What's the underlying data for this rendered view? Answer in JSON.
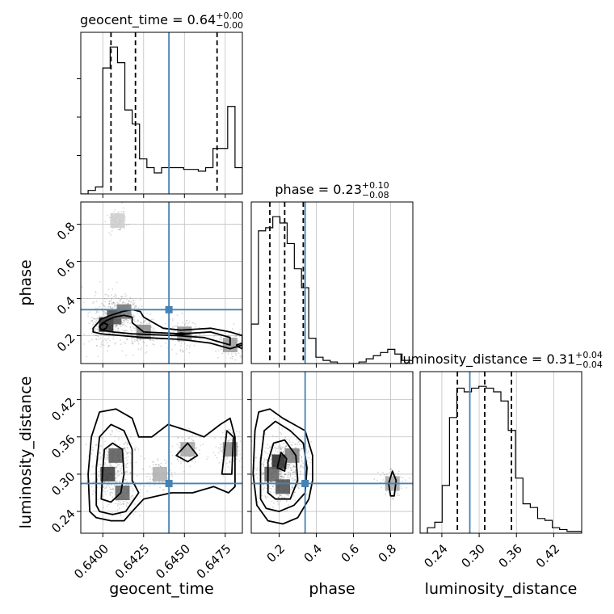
{
  "chart_data": {
    "type": "corner",
    "parameters": [
      "geocent_time",
      "phase",
      "luminosity_distance"
    ],
    "truths": {
      "geocent_time": 0.64405,
      "phase": 0.34,
      "luminosity_distance": 0.285
    },
    "ranges": {
      "geocent_time": [
        0.63865,
        0.64855
      ],
      "phase": [
        0.05,
        0.92
      ],
      "luminosity_distance": [
        0.205,
        0.465
      ]
    },
    "titles": [
      {
        "param": "geocent_time",
        "text": "geocent_time = 0.64",
        "sup": "+0.00",
        "sub": "−0.00"
      },
      {
        "param": "phase",
        "text": "phase = 0.23",
        "sup": "+0.10",
        "sub": "−0.08"
      },
      {
        "param": "luminosity_distance",
        "text": "luminosity_distance = 0.31",
        "sup": "+0.04",
        "sub": "−0.04"
      }
    ],
    "quantiles": {
      "geocent_time": [
        0.6405,
        0.642,
        0.647
      ],
      "phase": [
        0.15,
        0.23,
        0.33
      ],
      "luminosity_distance": [
        0.265,
        0.309,
        0.352
      ]
    },
    "ticks": {
      "geocent_time": [
        {
          "value": 0.64,
          "label": "0.6400"
        },
        {
          "value": 0.6425,
          "label": "0.6425"
        },
        {
          "value": 0.645,
          "label": "0.6450"
        },
        {
          "value": 0.6475,
          "label": "0.6475"
        }
      ],
      "phase": [
        {
          "value": 0.2,
          "label": "0.2"
        },
        {
          "value": 0.4,
          "label": "0.4"
        },
        {
          "value": 0.6,
          "label": "0.6"
        },
        {
          "value": 0.8,
          "label": "0.8"
        }
      ],
      "luminosity_distance": [
        {
          "value": 0.24,
          "label": "0.24"
        },
        {
          "value": 0.3,
          "label": "0.30"
        },
        {
          "value": 0.36,
          "label": "0.36"
        },
        {
          "value": 0.42,
          "label": "0.42"
        }
      ]
    },
    "histograms": {
      "geocent_time": {
        "edges": [
          0.63865,
          0.6391,
          0.63955,
          0.64,
          0.64045,
          0.6409,
          0.64135,
          0.6418,
          0.64225,
          0.6427,
          0.64315,
          0.6436,
          0.64405,
          0.6445,
          0.64495,
          0.6454,
          0.64585,
          0.6463,
          0.64675,
          0.6472,
          0.64765,
          0.6481,
          0.64855
        ],
        "counts": [
          0,
          2,
          4,
          72,
          84,
          75,
          48,
          40,
          20,
          15,
          12,
          15,
          15,
          15,
          14,
          14,
          13,
          15,
          26,
          26,
          50,
          15
        ]
      },
      "phase": {
        "edges": [
          0.05,
          0.0887,
          0.1273,
          0.166,
          0.2047,
          0.2433,
          0.282,
          0.3207,
          0.3593,
          0.398,
          0.4367,
          0.4753,
          0.514,
          0.5527,
          0.5913,
          0.63,
          0.6687,
          0.7073,
          0.746,
          0.7847,
          0.8233,
          0.862,
          0.92
        ],
        "counts": [
          25,
          84,
          86,
          93,
          89,
          76,
          60,
          48,
          16,
          4,
          2,
          1,
          0,
          0,
          0,
          1,
          3,
          5,
          7,
          9,
          6,
          2
        ]
      },
      "luminosity_distance": {
        "edges": [
          0.205,
          0.2168,
          0.2286,
          0.2405,
          0.2523,
          0.2641,
          0.2759,
          0.2877,
          0.2995,
          0.3114,
          0.3232,
          0.335,
          0.3468,
          0.3586,
          0.3705,
          0.3823,
          0.3941,
          0.4059,
          0.4177,
          0.4295,
          0.4414,
          0.4532,
          0.465
        ],
        "counts": [
          0,
          3,
          6,
          26,
          63,
          79,
          77,
          79,
          80,
          79,
          77,
          72,
          56,
          30,
          16,
          14,
          8,
          7,
          3,
          2,
          1,
          1
        ]
      }
    },
    "pairs": {
      "phase_vs_geocent_time": {
        "contours": [
          [
            [
              0.6394,
              0.24
            ],
            [
              0.6399,
              0.29
            ],
            [
              0.6405,
              0.31
            ],
            [
              0.6412,
              0.33
            ],
            [
              0.6418,
              0.34
            ],
            [
              0.6423,
              0.33
            ],
            [
              0.6425,
              0.3
            ],
            [
              0.6437,
              0.24
            ],
            [
              0.6448,
              0.23
            ],
            [
              0.6466,
              0.24
            ],
            [
              0.6478,
              0.22
            ],
            [
              0.64855,
              0.2
            ],
            [
              0.64855,
              0.15
            ],
            [
              0.6478,
              0.13
            ],
            [
              0.6466,
              0.16
            ],
            [
              0.6448,
              0.18
            ],
            [
              0.6425,
              0.19
            ],
            [
              0.6412,
              0.2
            ],
            [
              0.6399,
              0.21
            ],
            [
              0.6394,
              0.22
            ]
          ],
          [
            [
              0.6398,
              0.25
            ],
            [
              0.6402,
              0.28
            ],
            [
              0.6407,
              0.3
            ],
            [
              0.6413,
              0.31
            ],
            [
              0.6418,
              0.3
            ],
            [
              0.6418,
              0.27
            ],
            [
              0.6425,
              0.22
            ],
            [
              0.6448,
              0.21
            ],
            [
              0.6466,
              0.22
            ],
            [
              0.6478,
              0.19
            ],
            [
              0.6478,
              0.15
            ],
            [
              0.6462,
              0.19
            ],
            [
              0.6446,
              0.2
            ],
            [
              0.6418,
              0.21
            ],
            [
              0.6406,
              0.22
            ],
            [
              0.6399,
              0.23
            ]
          ],
          [
            [
              0.6398,
              0.25
            ],
            [
              0.64,
              0.27
            ],
            [
              0.6403,
              0.26
            ],
            [
              0.6402,
              0.24
            ],
            [
              0.6399,
              0.23
            ]
          ],
          [
            [
              0.6444,
              0.21
            ],
            [
              0.6448,
              0.215
            ],
            [
              0.6453,
              0.21
            ],
            [
              0.6448,
              0.205
            ]
          ],
          [
            [
              0.6482,
              0.15
            ],
            [
              0.64855,
              0.16
            ],
            [
              0.64855,
              0.13
            ],
            [
              0.6483,
              0.14
            ]
          ]
        ],
        "density_regions": [
          [
            0.6402,
            0.26,
            1.0
          ],
          [
            0.6407,
            0.3,
            0.8
          ],
          [
            0.6413,
            0.33,
            0.6
          ],
          [
            0.6425,
            0.22,
            0.5
          ],
          [
            0.645,
            0.21,
            0.45
          ],
          [
            0.6478,
            0.15,
            0.4
          ],
          [
            0.6409,
            0.82,
            0.15
          ]
        ]
      },
      "luminosity_distance_vs_geocent_time": {
        "contours": [
          [
            [
              0.6392,
              0.24
            ],
            [
              0.6391,
              0.3
            ],
            [
              0.6393,
              0.36
            ],
            [
              0.6398,
              0.4
            ],
            [
              0.6408,
              0.405
            ],
            [
              0.6418,
              0.39
            ],
            [
              0.6422,
              0.36
            ],
            [
              0.643,
              0.36
            ],
            [
              0.644,
              0.38
            ],
            [
              0.6452,
              0.37
            ],
            [
              0.6462,
              0.36
            ],
            [
              0.6472,
              0.38
            ],
            [
              0.6478,
              0.39
            ],
            [
              0.6481,
              0.36
            ],
            [
              0.6481,
              0.28
            ],
            [
              0.6477,
              0.27
            ],
            [
              0.6468,
              0.28
            ],
            [
              0.6455,
              0.27
            ],
            [
              0.6442,
              0.27
            ],
            [
              0.6425,
              0.26
            ],
            [
              0.6418,
              0.24
            ],
            [
              0.6413,
              0.225
            ],
            [
              0.6405,
              0.225
            ],
            [
              0.6396,
              0.23
            ]
          ],
          [
            [
              0.6396,
              0.25
            ],
            [
              0.6396,
              0.31
            ],
            [
              0.6398,
              0.36
            ],
            [
              0.6405,
              0.38
            ],
            [
              0.6413,
              0.37
            ],
            [
              0.6418,
              0.34
            ],
            [
              0.6418,
              0.29
            ],
            [
              0.6422,
              0.27
            ],
            [
              0.6414,
              0.24
            ],
            [
              0.6406,
              0.235
            ],
            [
              0.6398,
              0.24
            ]
          ],
          [
            [
              0.6399,
              0.26
            ],
            [
              0.64,
              0.31
            ],
            [
              0.6401,
              0.34
            ],
            [
              0.6406,
              0.35
            ],
            [
              0.6412,
              0.34
            ],
            [
              0.6413,
              0.3
            ],
            [
              0.6411,
              0.27
            ],
            [
              0.6405,
              0.255
            ]
          ],
          [
            [
              0.6445,
              0.33
            ],
            [
              0.6452,
              0.35
            ],
            [
              0.6458,
              0.33
            ],
            [
              0.6452,
              0.32
            ]
          ],
          [
            [
              0.6473,
              0.3
            ],
            [
              0.6476,
              0.37
            ],
            [
              0.648,
              0.36
            ],
            [
              0.6479,
              0.3
            ]
          ]
        ],
        "density_regions": [
          [
            0.6403,
            0.3,
            0.9
          ],
          [
            0.6408,
            0.33,
            0.75
          ],
          [
            0.6412,
            0.27,
            0.7
          ],
          [
            0.6478,
            0.34,
            0.5
          ],
          [
            0.6452,
            0.34,
            0.35
          ],
          [
            0.6435,
            0.3,
            0.3
          ]
        ]
      },
      "luminosity_distance_vs_phase": {
        "contours": [
          [
            [
              0.08,
              0.25
            ],
            [
              0.06,
              0.3
            ],
            [
              0.07,
              0.37
            ],
            [
              0.09,
              0.4
            ],
            [
              0.15,
              0.405
            ],
            [
              0.22,
              0.39
            ],
            [
              0.28,
              0.38
            ],
            [
              0.34,
              0.37
            ],
            [
              0.38,
              0.33
            ],
            [
              0.38,
              0.29
            ],
            [
              0.36,
              0.26
            ],
            [
              0.3,
              0.23
            ],
            [
              0.22,
              0.22
            ],
            [
              0.14,
              0.225
            ]
          ],
          [
            [
              0.1,
              0.26
            ],
            [
              0.1,
              0.32
            ],
            [
              0.12,
              0.37
            ],
            [
              0.18,
              0.385
            ],
            [
              0.26,
              0.37
            ],
            [
              0.33,
              0.35
            ],
            [
              0.35,
              0.31
            ],
            [
              0.34,
              0.27
            ],
            [
              0.28,
              0.25
            ],
            [
              0.2,
              0.24
            ],
            [
              0.13,
              0.245
            ]
          ],
          [
            [
              0.14,
              0.27
            ],
            [
              0.14,
              0.32
            ],
            [
              0.17,
              0.35
            ],
            [
              0.23,
              0.355
            ],
            [
              0.29,
              0.33
            ],
            [
              0.3,
              0.29
            ],
            [
              0.26,
              0.26
            ],
            [
              0.18,
              0.26
            ]
          ],
          [
            [
              0.19,
              0.31
            ],
            [
              0.21,
              0.335
            ],
            [
              0.24,
              0.325
            ],
            [
              0.23,
              0.305
            ]
          ],
          [
            [
              0.8,
              0.265
            ],
            [
              0.79,
              0.285
            ],
            [
              0.81,
              0.305
            ],
            [
              0.83,
              0.29
            ],
            [
              0.82,
              0.265
            ]
          ]
        ],
        "density_regions": [
          [
            0.2,
            0.32,
            1.0
          ],
          [
            0.22,
            0.28,
            0.8
          ],
          [
            0.16,
            0.3,
            0.7
          ],
          [
            0.27,
            0.33,
            0.55
          ],
          [
            0.81,
            0.285,
            0.35
          ]
        ]
      }
    },
    "colors": {
      "truth": "#4682b4",
      "hist": "#000000",
      "grid": "#c0c0c0",
      "points": "#4d4d4d"
    }
  }
}
